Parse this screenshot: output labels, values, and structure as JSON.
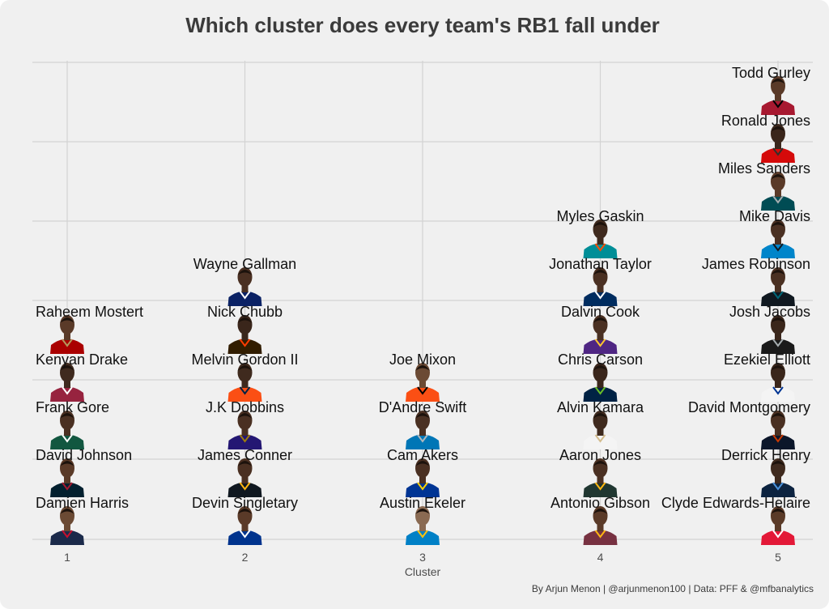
{
  "chart_data": {
    "type": "scatter",
    "title": "Which cluster does every team's RB1 fall under",
    "xlabel": "Cluster",
    "ylabel": "",
    "caption": "By Arjun Menon | @arjunmenon100 | Data: PFF & @mfbanalytics",
    "x_ticks": [
      "1",
      "2",
      "3",
      "4",
      "5"
    ],
    "xlim": [
      0.8,
      5.2
    ],
    "ylim": [
      1,
      11.05
    ],
    "grid": true,
    "legend": "none",
    "points": [
      {
        "name": "Damien Harris",
        "cluster": 1,
        "rank": 1,
        "head": "#6b4a34",
        "jersey": "#1b2a4a",
        "trim": "#c8102e"
      },
      {
        "name": "David Johnson",
        "cluster": 1,
        "rank": 2,
        "head": "#5a3a28",
        "jersey": "#03202f",
        "trim": "#a71930"
      },
      {
        "name": "Frank Gore",
        "cluster": 1,
        "rank": 3,
        "head": "#4a3022",
        "jersey": "#125740",
        "trim": "#ffffff"
      },
      {
        "name": "Kenyan Drake",
        "cluster": 1,
        "rank": 4,
        "head": "#3f2a1e",
        "jersey": "#97233f",
        "trim": "#ffffff"
      },
      {
        "name": "Raheem Mostert",
        "cluster": 1,
        "rank": 5,
        "head": "#5a3a28",
        "jersey": "#aa0000",
        "trim": "#b3995d"
      },
      {
        "name": "Devin Singletary",
        "cluster": 2,
        "rank": 1,
        "head": "#5a3a28",
        "jersey": "#00338d",
        "trim": "#ffffff"
      },
      {
        "name": "James Conner",
        "cluster": 2,
        "rank": 2,
        "head": "#4a3022",
        "jersey": "#101820",
        "trim": "#ffb612"
      },
      {
        "name": "J.K Dobbins",
        "cluster": 2,
        "rank": 3,
        "head": "#4a3022",
        "jersey": "#241773",
        "trim": "#9e7c0c"
      },
      {
        "name": "Melvin Gordon II",
        "cluster": 2,
        "rank": 4,
        "head": "#3f2a1e",
        "jersey": "#fb4f14",
        "trim": "#002244"
      },
      {
        "name": "Nick Chubb",
        "cluster": 2,
        "rank": 5,
        "head": "#3a261b",
        "jersey": "#311d00",
        "trim": "#ff3c00"
      },
      {
        "name": "Wayne Gallman",
        "cluster": 2,
        "rank": 6,
        "head": "#4a3022",
        "jersey": "#0b2265",
        "trim": "#ffffff"
      },
      {
        "name": "Austin Ekeler",
        "cluster": 3,
        "rank": 1,
        "head": "#8a6a52",
        "jersey": "#0080c6",
        "trim": "#ffc20e"
      },
      {
        "name": "Cam Akers",
        "cluster": 3,
        "rank": 2,
        "head": "#4a3022",
        "jersey": "#003594",
        "trim": "#ffd100"
      },
      {
        "name": "D'Andre Swift",
        "cluster": 3,
        "rank": 3,
        "head": "#4a3022",
        "jersey": "#0076b6",
        "trim": "#b0b7bc"
      },
      {
        "name": "Joe Mixon",
        "cluster": 3,
        "rank": 4,
        "head": "#6b4a34",
        "jersey": "#fb4f14",
        "trim": "#000000"
      },
      {
        "name": "Antonio Gibson",
        "cluster": 4,
        "rank": 1,
        "head": "#5a3a28",
        "jersey": "#773141",
        "trim": "#ffb612"
      },
      {
        "name": "Aaron Jones",
        "cluster": 4,
        "rank": 2,
        "head": "#4a3022",
        "jersey": "#203731",
        "trim": "#ffb612"
      },
      {
        "name": "Alvin Kamara",
        "cluster": 4,
        "rank": 3,
        "head": "#3f2a1e",
        "jersey": "#f4f4f4",
        "trim": "#d3bc8d"
      },
      {
        "name": "Chris Carson",
        "cluster": 4,
        "rank": 4,
        "head": "#3a261b",
        "jersey": "#002244",
        "trim": "#69be28"
      },
      {
        "name": "Dalvin Cook",
        "cluster": 4,
        "rank": 5,
        "head": "#4a3022",
        "jersey": "#4f2683",
        "trim": "#ffc62f"
      },
      {
        "name": "Jonathan Taylor",
        "cluster": 4,
        "rank": 6,
        "head": "#4a3022",
        "jersey": "#002c5f",
        "trim": "#ffffff"
      },
      {
        "name": "Myles Gaskin",
        "cluster": 4,
        "rank": 7,
        "head": "#3f2a1e",
        "jersey": "#008e97",
        "trim": "#fc4c02"
      },
      {
        "name": "Clyde Edwards-Helaire",
        "cluster": 5,
        "rank": 1,
        "head": "#5a3a28",
        "jersey": "#e31837",
        "trim": "#ffffff"
      },
      {
        "name": "Derrick Henry",
        "cluster": 5,
        "rank": 2,
        "head": "#3f2a1e",
        "jersey": "#0c2340",
        "trim": "#4b92db"
      },
      {
        "name": "David Montgomery",
        "cluster": 5,
        "rank": 3,
        "head": "#4a3022",
        "jersey": "#0b162a",
        "trim": "#c83803"
      },
      {
        "name": "Ezekiel Elliott",
        "cluster": 5,
        "rank": 4,
        "head": "#3a261b",
        "jersey": "#f4f4f4",
        "trim": "#003594"
      },
      {
        "name": "Josh Jacobs",
        "cluster": 5,
        "rank": 5,
        "head": "#3a261b",
        "jersey": "#1a1a1a",
        "trim": "#a5acaf"
      },
      {
        "name": "James Robinson",
        "cluster": 5,
        "rank": 6,
        "head": "#4a3022",
        "jersey": "#101820",
        "trim": "#006778"
      },
      {
        "name": "Mike Davis",
        "cluster": 5,
        "rank": 7,
        "head": "#4a3022",
        "jersey": "#0085ca",
        "trim": "#101820"
      },
      {
        "name": "Miles Sanders",
        "cluster": 5,
        "rank": 8,
        "head": "#5a3a28",
        "jersey": "#004c54",
        "trim": "#a5acaf"
      },
      {
        "name": "Ronald Jones",
        "cluster": 5,
        "rank": 9,
        "head": "#3a261b",
        "jersey": "#d50a0a",
        "trim": "#34302b"
      },
      {
        "name": "Todd Gurley",
        "cluster": 5,
        "rank": 10,
        "head": "#5a3a28",
        "jersey": "#a71930",
        "trim": "#000000"
      }
    ]
  }
}
